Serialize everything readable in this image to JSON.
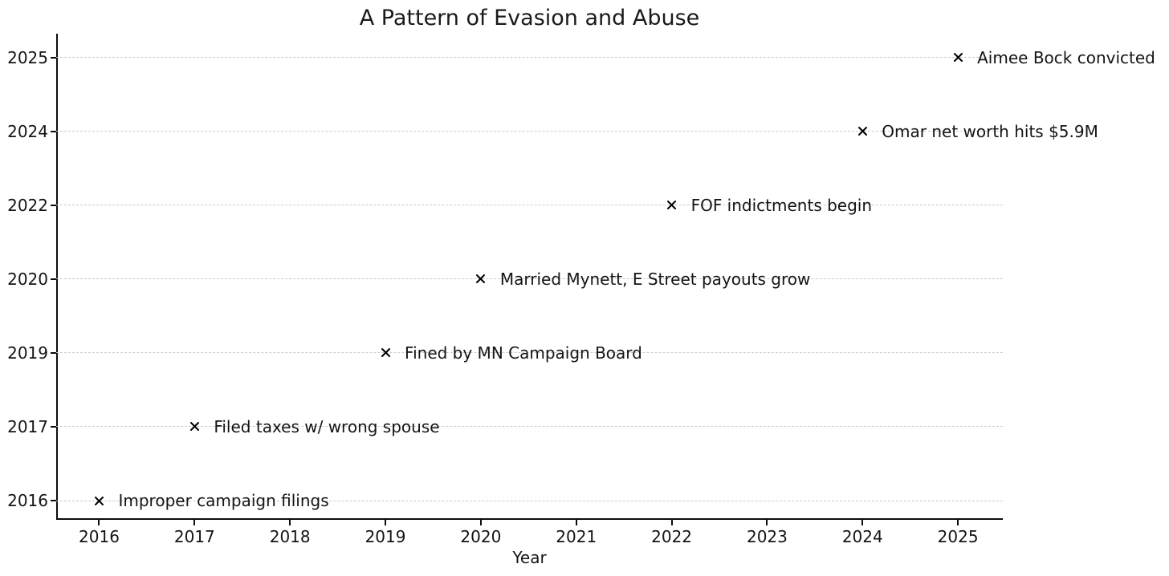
{
  "chart_data": {
    "type": "scatter",
    "title": "A Pattern of Evasion and Abuse",
    "xlabel": "Year",
    "ylabel": "",
    "x_ticks": [
      2016,
      2017,
      2018,
      2019,
      2020,
      2021,
      2022,
      2023,
      2024,
      2025
    ],
    "xlim": [
      2015.55,
      2025.47
    ],
    "y_categories": [
      "2025",
      "2024",
      "2022",
      "2020",
      "2019",
      "2017",
      "2016"
    ],
    "y_order": "top-to-bottom",
    "grid": {
      "horizontal": true,
      "vertical": false,
      "style": "dashed"
    },
    "legend": {
      "visible": false
    },
    "marker": {
      "shape": "x",
      "size": 11
    },
    "points": [
      {
        "x": 2016,
        "y": "2016",
        "label": "Improper campaign filings"
      },
      {
        "x": 2017,
        "y": "2017",
        "label": "Filed taxes w/ wrong spouse"
      },
      {
        "x": 2019,
        "y": "2019",
        "label": "Fined by MN Campaign Board"
      },
      {
        "x": 2020,
        "y": "2020",
        "label": "Married Mynett, E Street payouts grow"
      },
      {
        "x": 2022,
        "y": "2022",
        "label": "FOF indictments begin"
      },
      {
        "x": 2024,
        "y": "2024",
        "label": "Omar net worth hits $5.9M"
      },
      {
        "x": 2025,
        "y": "2025",
        "label": "Aimee Bock convicted"
      }
    ],
    "colors": {
      "text": "#141414",
      "marker": "#000000",
      "grid": "#cccccc",
      "spine": "#0d0d0d",
      "background": "#ffffff"
    }
  }
}
